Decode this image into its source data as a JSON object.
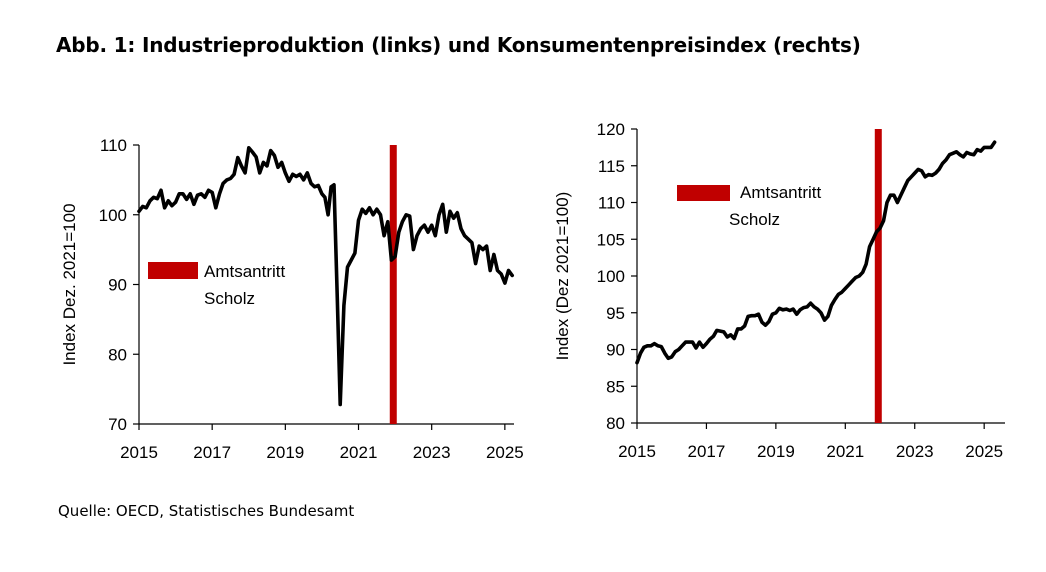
{
  "title": "Abb. 1: Industrieproduktion (links) und Konsumentenpreisindex (rechts)",
  "source": "Quelle: OECD, Statistisches Bundesamt",
  "colors": {
    "line": "#000000",
    "marker": "#c00000",
    "background": "#ffffff"
  },
  "chart_data": [
    {
      "type": "line",
      "title": "",
      "xlabel": "",
      "ylabel": "Index Dez. 2021=100",
      "xlim": [
        2015,
        2025.25
      ],
      "ylim": [
        70,
        110
      ],
      "xticks": [
        2015,
        2017,
        2019,
        2021,
        2023,
        2025
      ],
      "xtick_labels": [
        "2015",
        "2017",
        "2019",
        "2021",
        "2023",
        "2025"
      ],
      "yticks": [
        70,
        80,
        90,
        100,
        110
      ],
      "ytick_labels": [
        "70",
        "80",
        "90",
        "100",
        "110"
      ],
      "grid": false,
      "legend": {
        "label_line1": "Amtsantritt",
        "label_line2": "Scholz",
        "placement": "center-left"
      },
      "marker_line": {
        "x": 2021.95
      },
      "series": [
        {
          "x": [
            2015.0,
            2015.1,
            2015.2,
            2015.3,
            2015.4,
            2015.5,
            2015.6,
            2015.7,
            2015.8,
            2015.9,
            2016.0,
            2016.1,
            2016.2,
            2016.3,
            2016.4,
            2016.5,
            2016.6,
            2016.7,
            2016.8,
            2016.9,
            2017.0,
            2017.1,
            2017.2,
            2017.3,
            2017.4,
            2017.5,
            2017.6,
            2017.7,
            2017.8,
            2017.9,
            2018.0,
            2018.1,
            2018.2,
            2018.3,
            2018.4,
            2018.5,
            2018.6,
            2018.7,
            2018.8,
            2018.9,
            2019.0,
            2019.1,
            2019.2,
            2019.3,
            2019.4,
            2019.5,
            2019.6,
            2019.7,
            2019.8,
            2019.9,
            2020.0,
            2020.08,
            2020.17,
            2020.25,
            2020.33,
            2020.42,
            2020.5,
            2020.6,
            2020.7,
            2020.8,
            2020.9,
            2021.0,
            2021.1,
            2021.2,
            2021.3,
            2021.4,
            2021.5,
            2021.6,
            2021.7,
            2021.8,
            2021.9,
            2022.0,
            2022.1,
            2022.2,
            2022.3,
            2022.4,
            2022.5,
            2022.6,
            2022.7,
            2022.8,
            2022.9,
            2023.0,
            2023.1,
            2023.2,
            2023.3,
            2023.4,
            2023.5,
            2023.6,
            2023.7,
            2023.8,
            2023.9,
            2024.0,
            2024.1,
            2024.2,
            2024.3,
            2024.4,
            2024.5,
            2024.6,
            2024.7,
            2024.8,
            2024.9,
            2025.0,
            2025.1,
            2025.2
          ],
          "values": [
            100.5,
            101.2,
            101.0,
            102.0,
            102.5,
            102.3,
            103.5,
            101.0,
            102.0,
            101.3,
            101.8,
            103.0,
            103.0,
            102.2,
            103.0,
            101.5,
            102.8,
            103.0,
            102.5,
            103.5,
            103.2,
            101.0,
            103.0,
            104.5,
            105.0,
            105.2,
            105.8,
            108.2,
            107.0,
            106.0,
            109.6,
            109.0,
            108.3,
            106.0,
            107.5,
            107.0,
            109.2,
            108.5,
            106.8,
            107.5,
            106.0,
            104.8,
            105.8,
            105.5,
            105.8,
            105.0,
            106.0,
            104.5,
            104.0,
            104.2,
            103.0,
            102.5,
            100.0,
            104.0,
            104.3,
            88.0,
            72.8,
            87.0,
            92.5,
            93.5,
            94.5,
            99.2,
            100.8,
            100.2,
            101.0,
            100.0,
            100.8,
            100.0,
            97.0,
            99.0,
            93.5,
            94.0,
            97.5,
            99.0,
            100.0,
            99.8,
            95.0,
            97.0,
            98.0,
            98.5,
            97.5,
            98.5,
            97.0,
            100.0,
            101.5,
            97.5,
            100.5,
            99.5,
            100.3,
            98.0,
            97.0,
            96.5,
            96.0,
            93.0,
            95.5,
            95.0,
            95.5,
            92.0,
            94.3,
            92.0,
            91.5,
            90.2,
            92.0,
            91.3
          ],
          "color": "#000000"
        }
      ]
    },
    {
      "type": "line",
      "title": "",
      "xlabel": "",
      "ylabel": "Index (Dez 2021=100)",
      "xlim": [
        2015,
        2025.6
      ],
      "ylim": [
        80,
        120
      ],
      "xticks": [
        2015,
        2017,
        2019,
        2021,
        2023,
        2025
      ],
      "xtick_labels": [
        "2015",
        "2017",
        "2019",
        "2021",
        "2023",
        "2025"
      ],
      "yticks": [
        80,
        85,
        90,
        95,
        100,
        105,
        110,
        115,
        120
      ],
      "ytick_labels": [
        "80",
        "85",
        "90",
        "95",
        "100",
        "105",
        "110",
        "115",
        "120"
      ],
      "grid": false,
      "legend": {
        "label_line1": "Amtsantritt",
        "label_line2": "Scholz",
        "placement": "top-left"
      },
      "marker_line": {
        "x": 2021.95
      },
      "series": [
        {
          "x": [
            2015.0,
            2015.1,
            2015.2,
            2015.3,
            2015.4,
            2015.5,
            2015.6,
            2015.7,
            2015.8,
            2015.9,
            2016.0,
            2016.1,
            2016.2,
            2016.3,
            2016.4,
            2016.5,
            2016.6,
            2016.7,
            2016.8,
            2016.9,
            2017.0,
            2017.1,
            2017.2,
            2017.3,
            2017.4,
            2017.5,
            2017.6,
            2017.7,
            2017.8,
            2017.9,
            2018.0,
            2018.1,
            2018.2,
            2018.3,
            2018.4,
            2018.5,
            2018.6,
            2018.7,
            2018.8,
            2018.9,
            2019.0,
            2019.1,
            2019.2,
            2019.3,
            2019.4,
            2019.5,
            2019.6,
            2019.7,
            2019.8,
            2019.9,
            2020.0,
            2020.1,
            2020.2,
            2020.3,
            2020.4,
            2020.5,
            2020.6,
            2020.7,
            2020.8,
            2020.9,
            2021.0,
            2021.1,
            2021.2,
            2021.3,
            2021.4,
            2021.5,
            2021.6,
            2021.7,
            2021.8,
            2021.9,
            2022.0,
            2022.1,
            2022.2,
            2022.3,
            2022.4,
            2022.5,
            2022.6,
            2022.7,
            2022.8,
            2022.9,
            2023.0,
            2023.1,
            2023.2,
            2023.3,
            2023.4,
            2023.5,
            2023.6,
            2023.7,
            2023.8,
            2023.9,
            2024.0,
            2024.1,
            2024.2,
            2024.3,
            2024.4,
            2024.5,
            2024.6,
            2024.7,
            2024.8,
            2024.9,
            2025.0,
            2025.1,
            2025.2,
            2025.3
          ],
          "values": [
            88.2,
            89.5,
            90.3,
            90.5,
            90.5,
            90.8,
            90.5,
            90.4,
            89.5,
            88.8,
            89.0,
            89.7,
            90.0,
            90.5,
            91.0,
            91.0,
            91.0,
            90.2,
            91.0,
            90.3,
            90.8,
            91.4,
            91.8,
            92.6,
            92.5,
            92.4,
            91.7,
            92.0,
            91.5,
            92.8,
            92.8,
            93.2,
            94.5,
            94.6,
            94.6,
            94.8,
            93.7,
            93.3,
            93.8,
            94.8,
            95.0,
            95.6,
            95.4,
            95.5,
            95.3,
            95.5,
            94.8,
            95.4,
            95.7,
            95.8,
            96.3,
            95.8,
            95.5,
            95.0,
            94.0,
            94.5,
            96.0,
            96.8,
            97.5,
            97.8,
            98.3,
            98.8,
            99.3,
            99.8,
            100.0,
            100.5,
            101.6,
            104.0,
            105.0,
            106.0,
            106.5,
            107.5,
            110.0,
            111.0,
            111.0,
            110.0,
            111.0,
            112.0,
            113.0,
            113.5,
            114.0,
            114.5,
            114.3,
            113.5,
            113.8,
            113.7,
            114.0,
            114.5,
            115.3,
            115.8,
            116.5,
            116.7,
            116.9,
            116.5,
            116.2,
            116.8,
            116.6,
            116.5,
            117.2,
            117.0,
            117.5,
            117.5,
            117.5,
            118.2
          ],
          "color": "#000000"
        }
      ]
    }
  ]
}
